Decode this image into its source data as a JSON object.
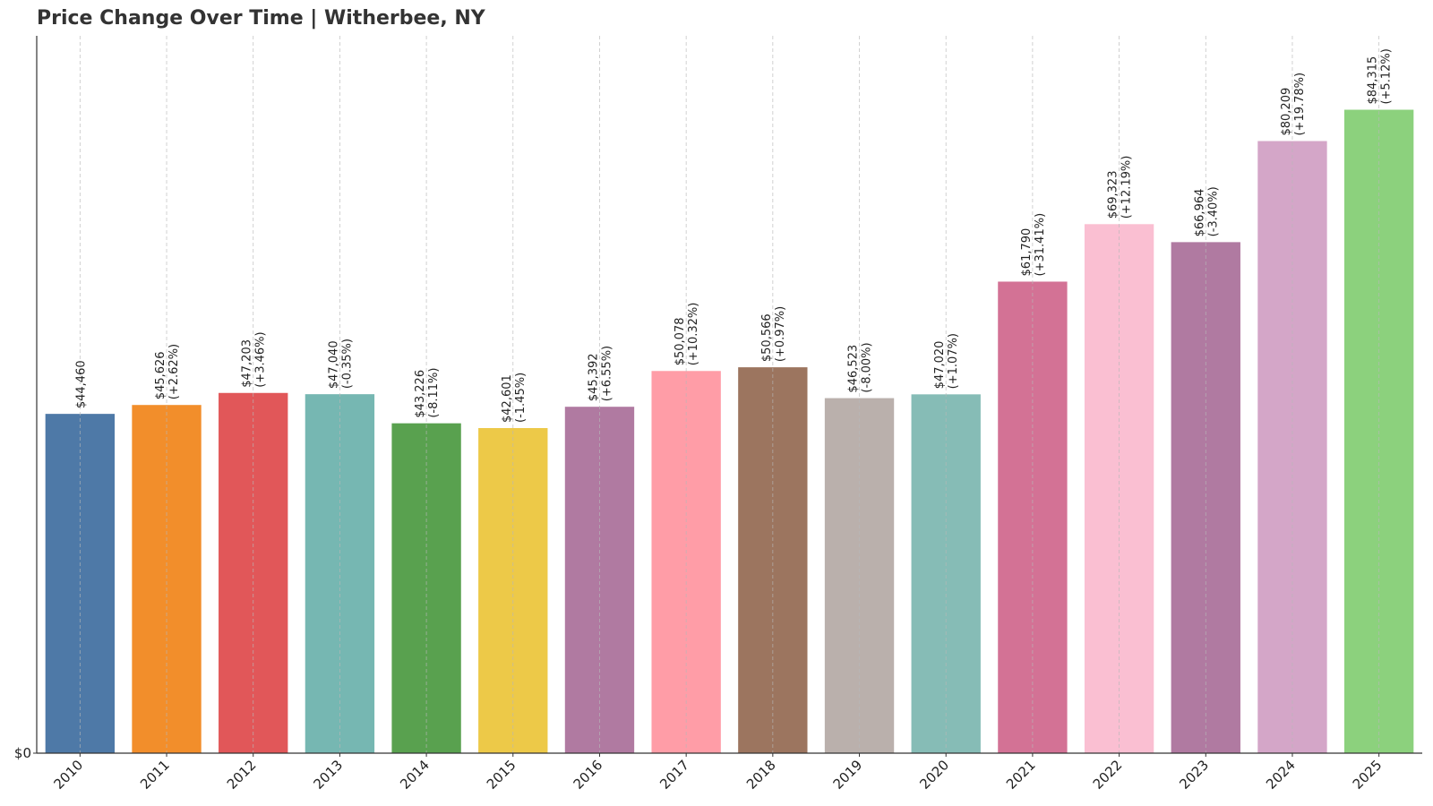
{
  "chart_data": {
    "type": "bar",
    "title": "Price Change Over Time | Witherbee, NY",
    "xlabel": "",
    "ylabel": "",
    "ylim": [
      0,
      94000
    ],
    "y_ticks": [
      {
        "value": 0,
        "label": "$0"
      }
    ],
    "grid": "vertical dashed",
    "categories": [
      "2010",
      "2011",
      "2012",
      "2013",
      "2014",
      "2015",
      "2016",
      "2017",
      "2018",
      "2019",
      "2020",
      "2021",
      "2022",
      "2023",
      "2024",
      "2025"
    ],
    "values": [
      44460,
      45626,
      47203,
      47040,
      43226,
      42601,
      45392,
      50078,
      50566,
      46523,
      47020,
      61790,
      69323,
      66964,
      80209,
      84315
    ],
    "value_labels": [
      "$44,460",
      "$45,626",
      "$47,203",
      "$47,040",
      "$43,226",
      "$42,601",
      "$45,392",
      "$50,078",
      "$50,566",
      "$46,523",
      "$47,020",
      "$61,790",
      "$69,323",
      "$66,964",
      "$80,209",
      "$84,315"
    ],
    "change_labels": [
      "",
      "(+2.62%)",
      "(+3.46%)",
      "(-0.35%)",
      "(-8.11%)",
      "(-1.45%)",
      "(+6.55%)",
      "(+10.32%)",
      "(+0.97%)",
      "(-8.00%)",
      "(+1.07%)",
      "(+31.41%)",
      "(+12.19%)",
      "(-3.40%)",
      "(+19.78%)",
      "(+5.12%)"
    ],
    "colors": [
      "#4e79a7",
      "#f28e2b",
      "#e15759",
      "#76b7b2",
      "#59a14f",
      "#edc948",
      "#b07aa1",
      "#ff9da7",
      "#9c755f",
      "#bab0ac",
      "#86bcb6",
      "#d37295",
      "#fabfd2",
      "#b07aa1",
      "#d4a6c8",
      "#8cd17d"
    ]
  }
}
